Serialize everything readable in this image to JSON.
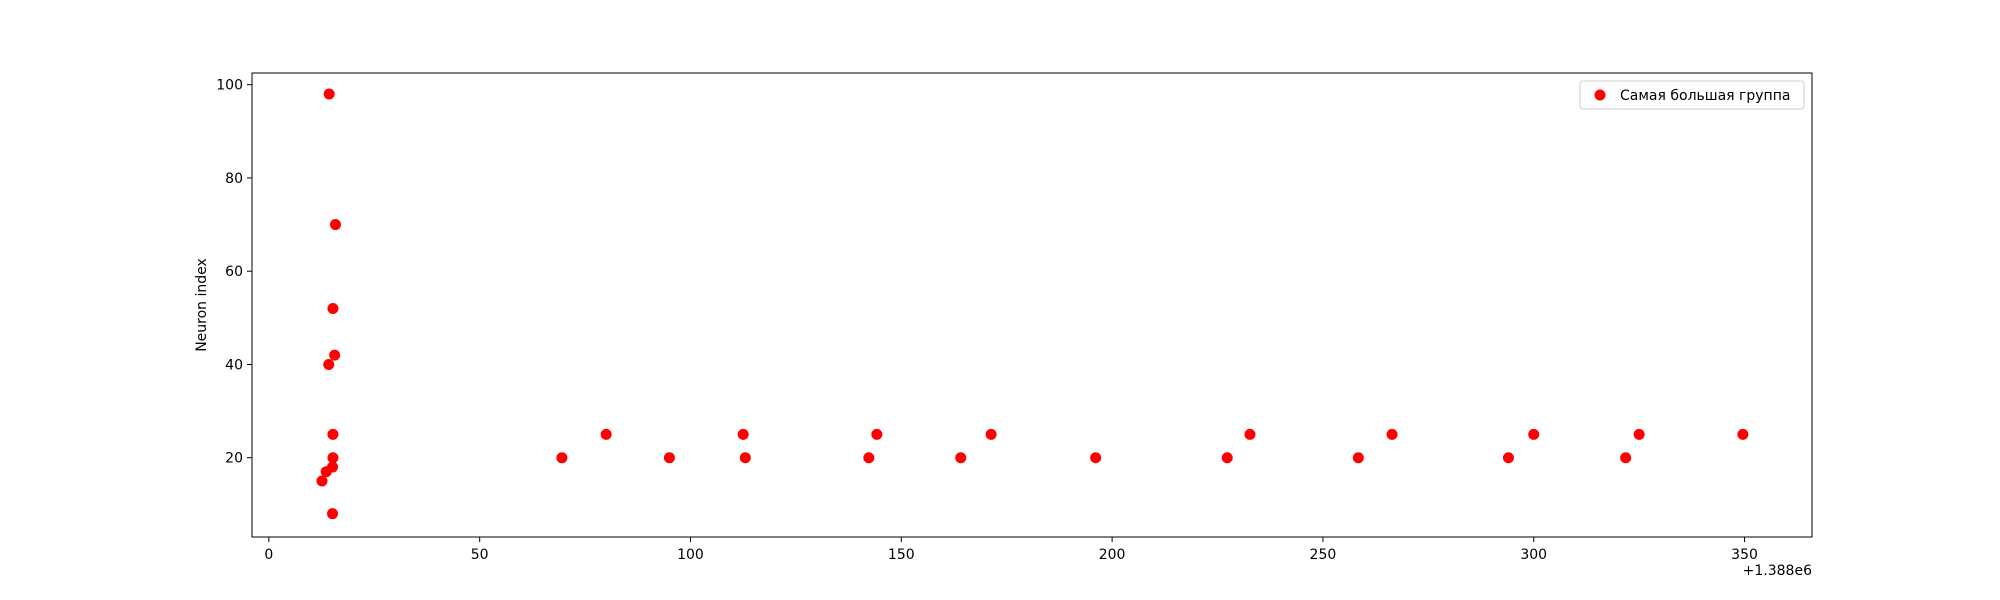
{
  "chart_data": {
    "type": "scatter",
    "title": "",
    "xlabel": "",
    "ylabel": "Neuron index",
    "x_offset_label": "+1.388e6",
    "xlim": [
      -4,
      366
    ],
    "ylim": [
      3,
      102.5
    ],
    "x_ticks": [
      0,
      50,
      100,
      150,
      200,
      250,
      300,
      350
    ],
    "y_ticks": [
      20,
      40,
      60,
      80,
      100
    ],
    "grid": false,
    "legend_position": "top-right",
    "series": [
      {
        "name": "Самая большая группа",
        "color": "#ff0000",
        "marker": "circle",
        "points": [
          {
            "x": 1388014.3,
            "y": 98
          },
          {
            "x": 1388015.8,
            "y": 70
          },
          {
            "x": 1388015.2,
            "y": 52
          },
          {
            "x": 1388015.6,
            "y": 42
          },
          {
            "x": 1388014.2,
            "y": 40
          },
          {
            "x": 1388015.2,
            "y": 25
          },
          {
            "x": 1388015.2,
            "y": 20
          },
          {
            "x": 1388015.1,
            "y": 18
          },
          {
            "x": 1388013.6,
            "y": 17
          },
          {
            "x": 1388012.6,
            "y": 15
          },
          {
            "x": 1388015.1,
            "y": 8
          },
          {
            "x": 1388069.5,
            "y": 20
          },
          {
            "x": 1388080.0,
            "y": 25
          },
          {
            "x": 1388095.0,
            "y": 20
          },
          {
            "x": 1388112.5,
            "y": 25
          },
          {
            "x": 1388113.0,
            "y": 20
          },
          {
            "x": 1388142.3,
            "y": 20
          },
          {
            "x": 1388144.2,
            "y": 25
          },
          {
            "x": 1388164.1,
            "y": 20
          },
          {
            "x": 1388171.3,
            "y": 25
          },
          {
            "x": 1388196.1,
            "y": 20
          },
          {
            "x": 1388227.3,
            "y": 20
          },
          {
            "x": 1388232.7,
            "y": 25
          },
          {
            "x": 1388258.4,
            "y": 20
          },
          {
            "x": 1388266.4,
            "y": 25
          },
          {
            "x": 1388294.0,
            "y": 20
          },
          {
            "x": 1388300.0,
            "y": 25
          },
          {
            "x": 1388321.8,
            "y": 20
          },
          {
            "x": 1388325.0,
            "y": 25
          },
          {
            "x": 1388349.6,
            "y": 25
          }
        ]
      }
    ]
  }
}
